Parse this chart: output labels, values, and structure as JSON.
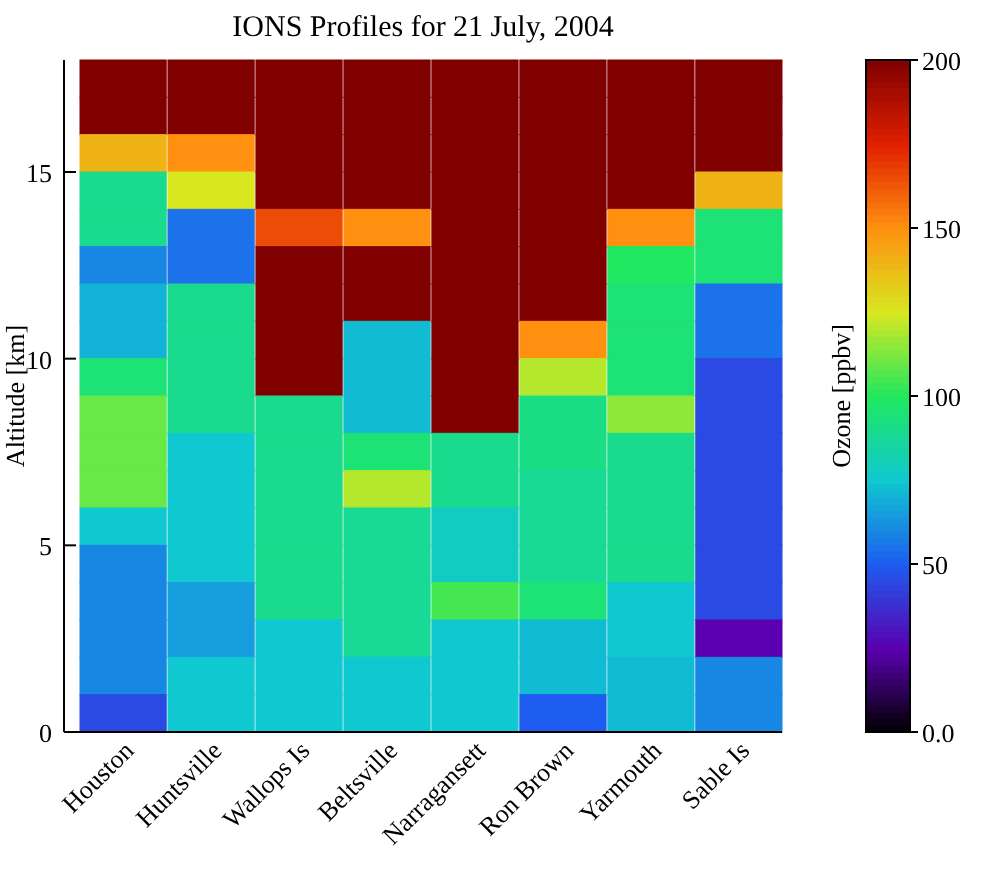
{
  "chart_data": {
    "type": "heatmap",
    "title": "IONS Profiles for 21 July, 2004",
    "ylabel": "Altitude [km]",
    "clabel": "Ozone [ppbv]",
    "categories": [
      "Houston",
      "Huntsville",
      "Wallops Is",
      "Beltsville",
      "Narragansett",
      "Ron Brown",
      "Yarmouth",
      "Sable Is"
    ],
    "ylim": [
      0,
      18
    ],
    "yticks": [
      0,
      5,
      10,
      15
    ],
    "clim": [
      0,
      200
    ],
    "cticks": [
      {
        "value": 0,
        "label": "0.0"
      },
      50,
      100,
      150,
      200
    ],
    "cells": [
      [
        200,
        200,
        200,
        200,
        200,
        200,
        200,
        200
      ],
      [
        200,
        200,
        200,
        200,
        200,
        200,
        200,
        200
      ],
      [
        140,
        150,
        200,
        200,
        200,
        200,
        200,
        200
      ],
      [
        90,
        125,
        200,
        200,
        200,
        200,
        200,
        140
      ],
      [
        90,
        55,
        165,
        150,
        200,
        200,
        150,
        95
      ],
      [
        60,
        55,
        200,
        200,
        200,
        200,
        100,
        95
      ],
      [
        70,
        90,
        200,
        200,
        200,
        200,
        95,
        55
      ],
      [
        70,
        90,
        200,
        72,
        200,
        150,
        95,
        55
      ],
      [
        95,
        90,
        200,
        72,
        200,
        120,
        95,
        45
      ],
      [
        110,
        90,
        90,
        72,
        200,
        92,
        115,
        45
      ],
      [
        110,
        75,
        90,
        95,
        90,
        92,
        90,
        45
      ],
      [
        110,
        75,
        90,
        120,
        90,
        88,
        90,
        45
      ],
      [
        75,
        75,
        90,
        88,
        78,
        88,
        90,
        45
      ],
      [
        60,
        75,
        90,
        88,
        78,
        88,
        90,
        45
      ],
      [
        60,
        65,
        90,
        88,
        105,
        95,
        75,
        45
      ],
      [
        60,
        65,
        75,
        88,
        75,
        72,
        75,
        25
      ],
      [
        60,
        75,
        75,
        75,
        75,
        72,
        72,
        60
      ],
      [
        45,
        75,
        75,
        75,
        75,
        50,
        72,
        60
      ]
    ]
  }
}
